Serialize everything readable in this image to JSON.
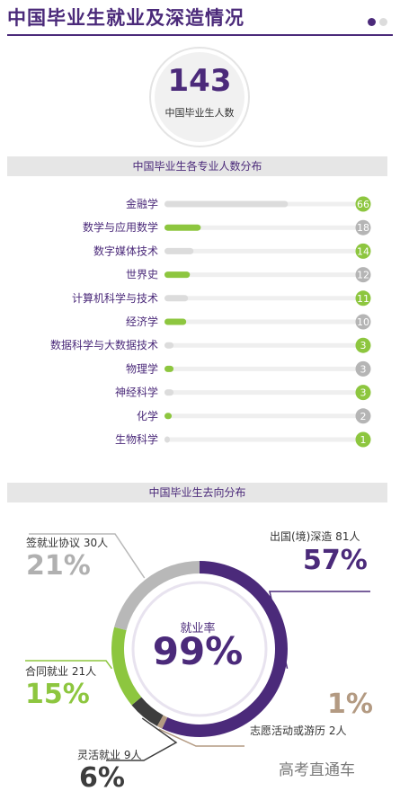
{
  "header": {
    "title": "中国毕业生就业及深造情况"
  },
  "total": {
    "value": "143",
    "label": "中国毕业生人数"
  },
  "sections": {
    "majors_title": "中国毕业生各专业人数分布",
    "destination_title": "中国毕业生去向分布"
  },
  "chart_data": [
    {
      "type": "bar",
      "orientation": "horizontal",
      "title": "中国毕业生各专业人数分布",
      "categories": [
        "金融学",
        "数学与应用数学",
        "数字媒体技术",
        "世界史",
        "计算机科学与技术",
        "经济学",
        "数据科学与大数据技术",
        "物理学",
        "神经科学",
        "化学",
        "生物科学"
      ],
      "values": [
        66,
        18,
        14,
        12,
        11,
        10,
        3,
        3,
        3,
        2,
        1
      ],
      "value_labels": [
        "66",
        "18",
        "14",
        "12",
        "11",
        "10",
        "3",
        "3",
        "3",
        "2",
        "1"
      ],
      "colors": {
        "odd_rows_bar": "#dcdcdc",
        "even_rows_bar": "#8dc63f",
        "odd_rows_badge": "#8dc63f",
        "even_rows_badge": "#b5b5b5",
        "track": "#efefef"
      }
    },
    {
      "type": "pie",
      "donut": true,
      "title": "中国毕业生去向分布",
      "center_label": "就业率",
      "center_value": "99%",
      "slices": [
        {
          "label": "出国(境)深造 81人",
          "count": 81,
          "percent_label": "57%",
          "value": 57,
          "color": "#4b2a7a"
        },
        {
          "label": "志愿活动或游历 2人",
          "count": 2,
          "percent_label": "1%",
          "value": 1,
          "color": "#b39a82"
        },
        {
          "label": "灵活就业 9人",
          "count": 9,
          "percent_label": "6%",
          "value": 6,
          "color": "#3d3d3d"
        },
        {
          "label": "合同就业 21人",
          "count": 21,
          "percent_label": "15%",
          "value": 15,
          "color": "#8dc63f"
        },
        {
          "label": "签就业协议 30人",
          "count": 30,
          "percent_label": "21%",
          "value": 21,
          "color": "#b8b8b8"
        }
      ]
    }
  ],
  "watermark": "高考直通车"
}
